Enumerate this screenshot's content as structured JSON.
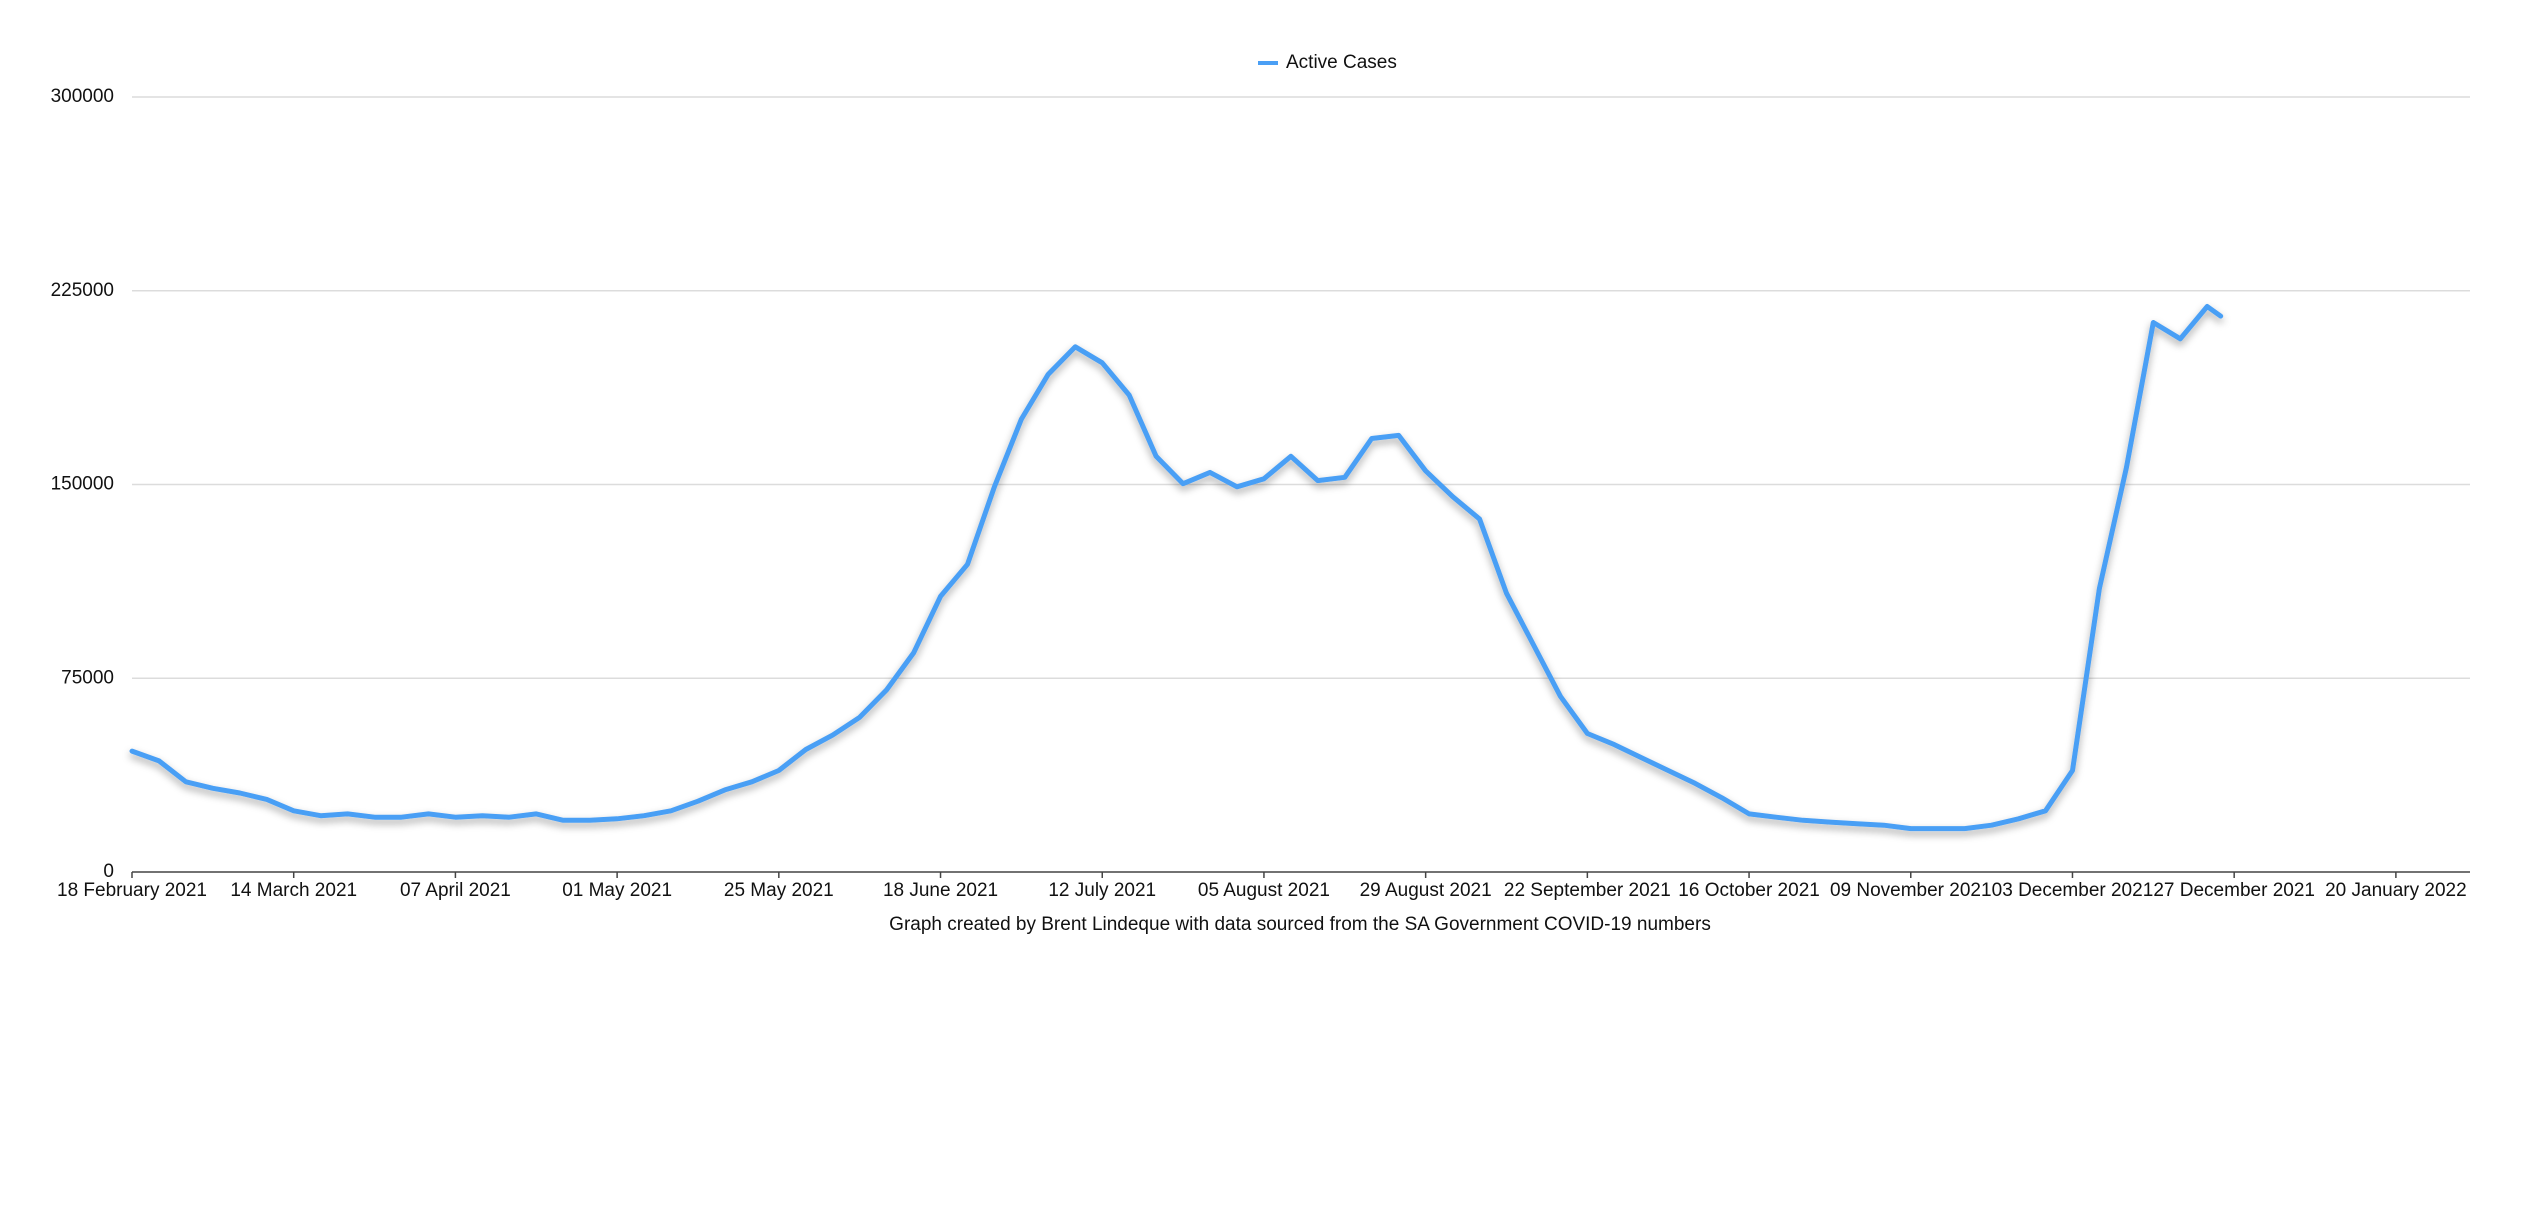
{
  "chart_data": {
    "type": "line",
    "caption": "Graph created by Brent Lindeque with data sourced from the SA Government COVID-19 numbers",
    "legend": "top",
    "grid": true,
    "x": [
      "2021-02-18",
      "2021-02-22",
      "2021-02-26",
      "2021-03-02",
      "2021-03-06",
      "2021-03-10",
      "2021-03-14",
      "2021-03-18",
      "2021-03-22",
      "2021-03-26",
      "2021-03-30",
      "2021-04-03",
      "2021-04-07",
      "2021-04-11",
      "2021-04-15",
      "2021-04-19",
      "2021-04-23",
      "2021-04-27",
      "2021-05-01",
      "2021-05-05",
      "2021-05-09",
      "2021-05-13",
      "2021-05-17",
      "2021-05-21",
      "2021-05-25",
      "2021-05-29",
      "2021-06-02",
      "2021-06-06",
      "2021-06-10",
      "2021-06-14",
      "2021-06-18",
      "2021-06-22",
      "2021-06-26",
      "2021-06-30",
      "2021-07-04",
      "2021-07-08",
      "2021-07-12",
      "2021-07-16",
      "2021-07-20",
      "2021-07-24",
      "2021-07-28",
      "2021-08-01",
      "2021-08-05",
      "2021-08-09",
      "2021-08-13",
      "2021-08-17",
      "2021-08-21",
      "2021-08-25",
      "2021-08-29",
      "2021-09-02",
      "2021-09-06",
      "2021-09-10",
      "2021-09-14",
      "2021-09-18",
      "2021-09-22",
      "2021-09-26",
      "2021-09-30",
      "2021-10-04",
      "2021-10-08",
      "2021-10-12",
      "2021-10-16",
      "2021-10-20",
      "2021-10-24",
      "2021-10-28",
      "2021-11-01",
      "2021-11-05",
      "2021-11-09",
      "2021-11-13",
      "2021-11-17",
      "2021-11-21",
      "2021-11-25",
      "2021-11-29",
      "2021-12-03",
      "2021-12-07",
      "2021-12-11",
      "2021-12-15",
      "2021-12-19",
      "2021-12-23",
      "2021-12-25"
    ],
    "series": [
      {
        "name": "Active Cases",
        "color": "#4a9ff5",
        "values": [
          46800,
          43000,
          34900,
          32400,
          30600,
          28100,
          23700,
          21800,
          22500,
          21200,
          21200,
          22500,
          21200,
          21800,
          21200,
          22500,
          20000,
          20000,
          20600,
          21800,
          23700,
          27400,
          31800,
          34900,
          39300,
          47400,
          53000,
          59900,
          70500,
          84800,
          106700,
          119100,
          149100,
          175300,
          192700,
          203300,
          197100,
          184600,
          160900,
          150300,
          154700,
          149100,
          152200,
          160900,
          151500,
          152800,
          167800,
          169000,
          155300,
          145300,
          136600,
          107900,
          87900,
          68000,
          53600,
          49300,
          44300,
          39300,
          34300,
          28700,
          22500,
          21200,
          20000,
          19300,
          18700,
          18100,
          16800,
          16800,
          16800,
          18100,
          20600,
          23700,
          39300,
          109800,
          156500,
          212700,
          206400,
          218900,
          215200
        ]
      }
    ],
    "xlim": [
      "2021-02-18",
      "2022-01-31"
    ],
    "xticks": [
      {
        "value": "2021-02-18",
        "label": "18 February 2021"
      },
      {
        "value": "2021-03-14",
        "label": "14 March 2021"
      },
      {
        "value": "2021-04-07",
        "label": "07 April 2021"
      },
      {
        "value": "2021-05-01",
        "label": "01 May 2021"
      },
      {
        "value": "2021-05-25",
        "label": "25 May 2021"
      },
      {
        "value": "2021-06-18",
        "label": "18 June 2021"
      },
      {
        "value": "2021-07-12",
        "label": "12 July 2021"
      },
      {
        "value": "2021-08-05",
        "label": "05 August 2021"
      },
      {
        "value": "2021-08-29",
        "label": "29 August 2021"
      },
      {
        "value": "2021-09-22",
        "label": "22 September 2021"
      },
      {
        "value": "2021-10-16",
        "label": "16 October 2021"
      },
      {
        "value": "2021-11-09",
        "label": "09 November 2021"
      },
      {
        "value": "2021-12-03",
        "label": "03 December 2021"
      },
      {
        "value": "2021-12-27",
        "label": "27 December 2021"
      },
      {
        "value": "2022-01-20",
        "label": "20 January 2022"
      }
    ],
    "ylim": [
      0,
      300000
    ],
    "yticks": [
      0,
      75000,
      150000,
      225000,
      300000
    ]
  }
}
